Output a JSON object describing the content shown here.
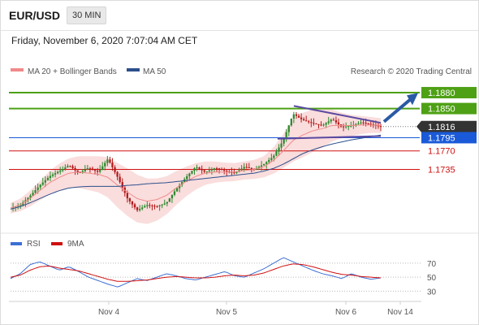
{
  "header": {
    "pair": "EUR/USD",
    "timeframe": "30 MIN"
  },
  "date": "Friday, November 6, 2020 7:07:04 AM CET",
  "chart_data": [
    {
      "type": "line",
      "title": "EUR/USD",
      "subtitle": "Friday, November 6, 2020 7:07:04 AM CET",
      "legend": [
        {
          "name": "MA 20 + Bollinger Bands",
          "color": "#f08a8a"
        },
        {
          "name": "MA 50",
          "color": "#2c4f8c"
        }
      ],
      "legend_position": "top-left",
      "attribution": "Research © 2020 Trading Central",
      "x_ticks": [
        "Nov 4",
        "Nov 5",
        "Nov 6",
        "Nov 14"
      ],
      "grid": false,
      "ylim": [
        1.163,
        1.19
      ],
      "levels": [
        {
          "label": "1.1880",
          "value": 1.188,
          "kind": "resistance",
          "color": "#4ea015"
        },
        {
          "label": "1.1850",
          "value": 1.185,
          "kind": "resistance",
          "color": "#4ea015"
        },
        {
          "label": "1.1816",
          "value": 1.1816,
          "kind": "last price",
          "color": "#333333"
        },
        {
          "label": "1.1795",
          "value": 1.1795,
          "kind": "pivot",
          "color": "#1a5ad8"
        },
        {
          "label": "1.1770",
          "value": 1.177,
          "kind": "support",
          "color": "#d01010"
        },
        {
          "label": "1.1735",
          "value": 1.1735,
          "kind": "support",
          "color": "#d01010"
        }
      ],
      "price_path": [
        1.1662,
        1.1668,
        1.1685,
        1.1705,
        1.1722,
        1.1732,
        1.1743,
        1.1728,
        1.1738,
        1.173,
        1.1755,
        1.172,
        1.168,
        1.1658,
        1.1668,
        1.1665,
        1.1672,
        1.1698,
        1.172,
        1.174,
        1.173,
        1.1738,
        1.1732,
        1.1728,
        1.174,
        1.1735,
        1.1745,
        1.176,
        1.179,
        1.184,
        1.1828,
        1.1822,
        1.1818,
        1.183,
        1.1815,
        1.1818,
        1.1824,
        1.182,
        1.1816
      ],
      "ma20": [
        1.1662,
        1.1668,
        1.168,
        1.1695,
        1.171,
        1.172,
        1.1728,
        1.173,
        1.1728,
        1.1726,
        1.172,
        1.1705,
        1.1692,
        1.168,
        1.1675,
        1.1678,
        1.1686,
        1.17,
        1.1712,
        1.1722,
        1.1728,
        1.173,
        1.173,
        1.173,
        1.1733,
        1.1735,
        1.174,
        1.1752,
        1.177,
        1.179,
        1.18,
        1.1808,
        1.1812,
        1.1818,
        1.1818,
        1.1818,
        1.1819,
        1.1819,
        1.1818
      ],
      "ma50": [
        1.166,
        1.1665,
        1.1672,
        1.168,
        1.1688,
        1.1695,
        1.17,
        1.1702,
        1.1703,
        1.1703,
        1.1703,
        1.1703,
        1.1705,
        1.1706,
        1.1708,
        1.1709,
        1.171,
        1.1712,
        1.1714,
        1.1716,
        1.1718,
        1.172,
        1.1722,
        1.1724,
        1.1726,
        1.1728,
        1.1732,
        1.1737,
        1.1745,
        1.1755,
        1.1765,
        1.1772,
        1.1778,
        1.1783,
        1.1787,
        1.1791,
        1.1794,
        1.1797,
        1.18
      ],
      "bb_width": [
        0.001,
        0.0012,
        0.0015,
        0.0018,
        0.0022,
        0.0026,
        0.0028,
        0.003,
        0.0032,
        0.0034,
        0.0038,
        0.0042,
        0.0045,
        0.0045,
        0.0043,
        0.004,
        0.0036,
        0.0032,
        0.0028,
        0.0025,
        0.0022,
        0.002,
        0.0018,
        0.0017,
        0.0017,
        0.0018,
        0.002,
        0.0025,
        0.0032,
        0.004,
        0.0042,
        0.004,
        0.0036,
        0.003,
        0.0024,
        0.002,
        0.0017,
        0.0015,
        0.0014
      ],
      "triangle_upper": [
        1.1855,
        1.1823
      ],
      "triangle_lower": [
        1.1793,
        1.1798
      ],
      "projection": [
        1.1816,
        1.1878
      ]
    },
    {
      "type": "line",
      "legend": [
        {
          "name": "RSI",
          "color": "#3b6fd4"
        },
        {
          "name": "9MA",
          "color": "#d01010"
        }
      ],
      "legend_position": "top-left",
      "y_ticks": [
        70,
        50,
        30
      ],
      "ylim": [
        20,
        85
      ],
      "rsi": [
        48,
        55,
        68,
        72,
        66,
        60,
        65,
        58,
        50,
        45,
        40,
        36,
        42,
        48,
        45,
        50,
        55,
        52,
        48,
        46,
        50,
        54,
        58,
        52,
        50,
        56,
        62,
        70,
        78,
        72,
        66,
        60,
        55,
        52,
        48,
        55,
        50,
        47,
        49
      ],
      "rsi_ma": [
        50,
        53,
        60,
        65,
        66,
        63,
        61,
        59,
        55,
        51,
        47,
        44,
        44,
        45,
        46,
        48,
        50,
        51,
        50,
        49,
        49,
        50,
        52,
        53,
        52,
        53,
        56,
        61,
        66,
        69,
        68,
        65,
        61,
        57,
        54,
        53,
        51,
        50,
        49
      ]
    }
  ]
}
